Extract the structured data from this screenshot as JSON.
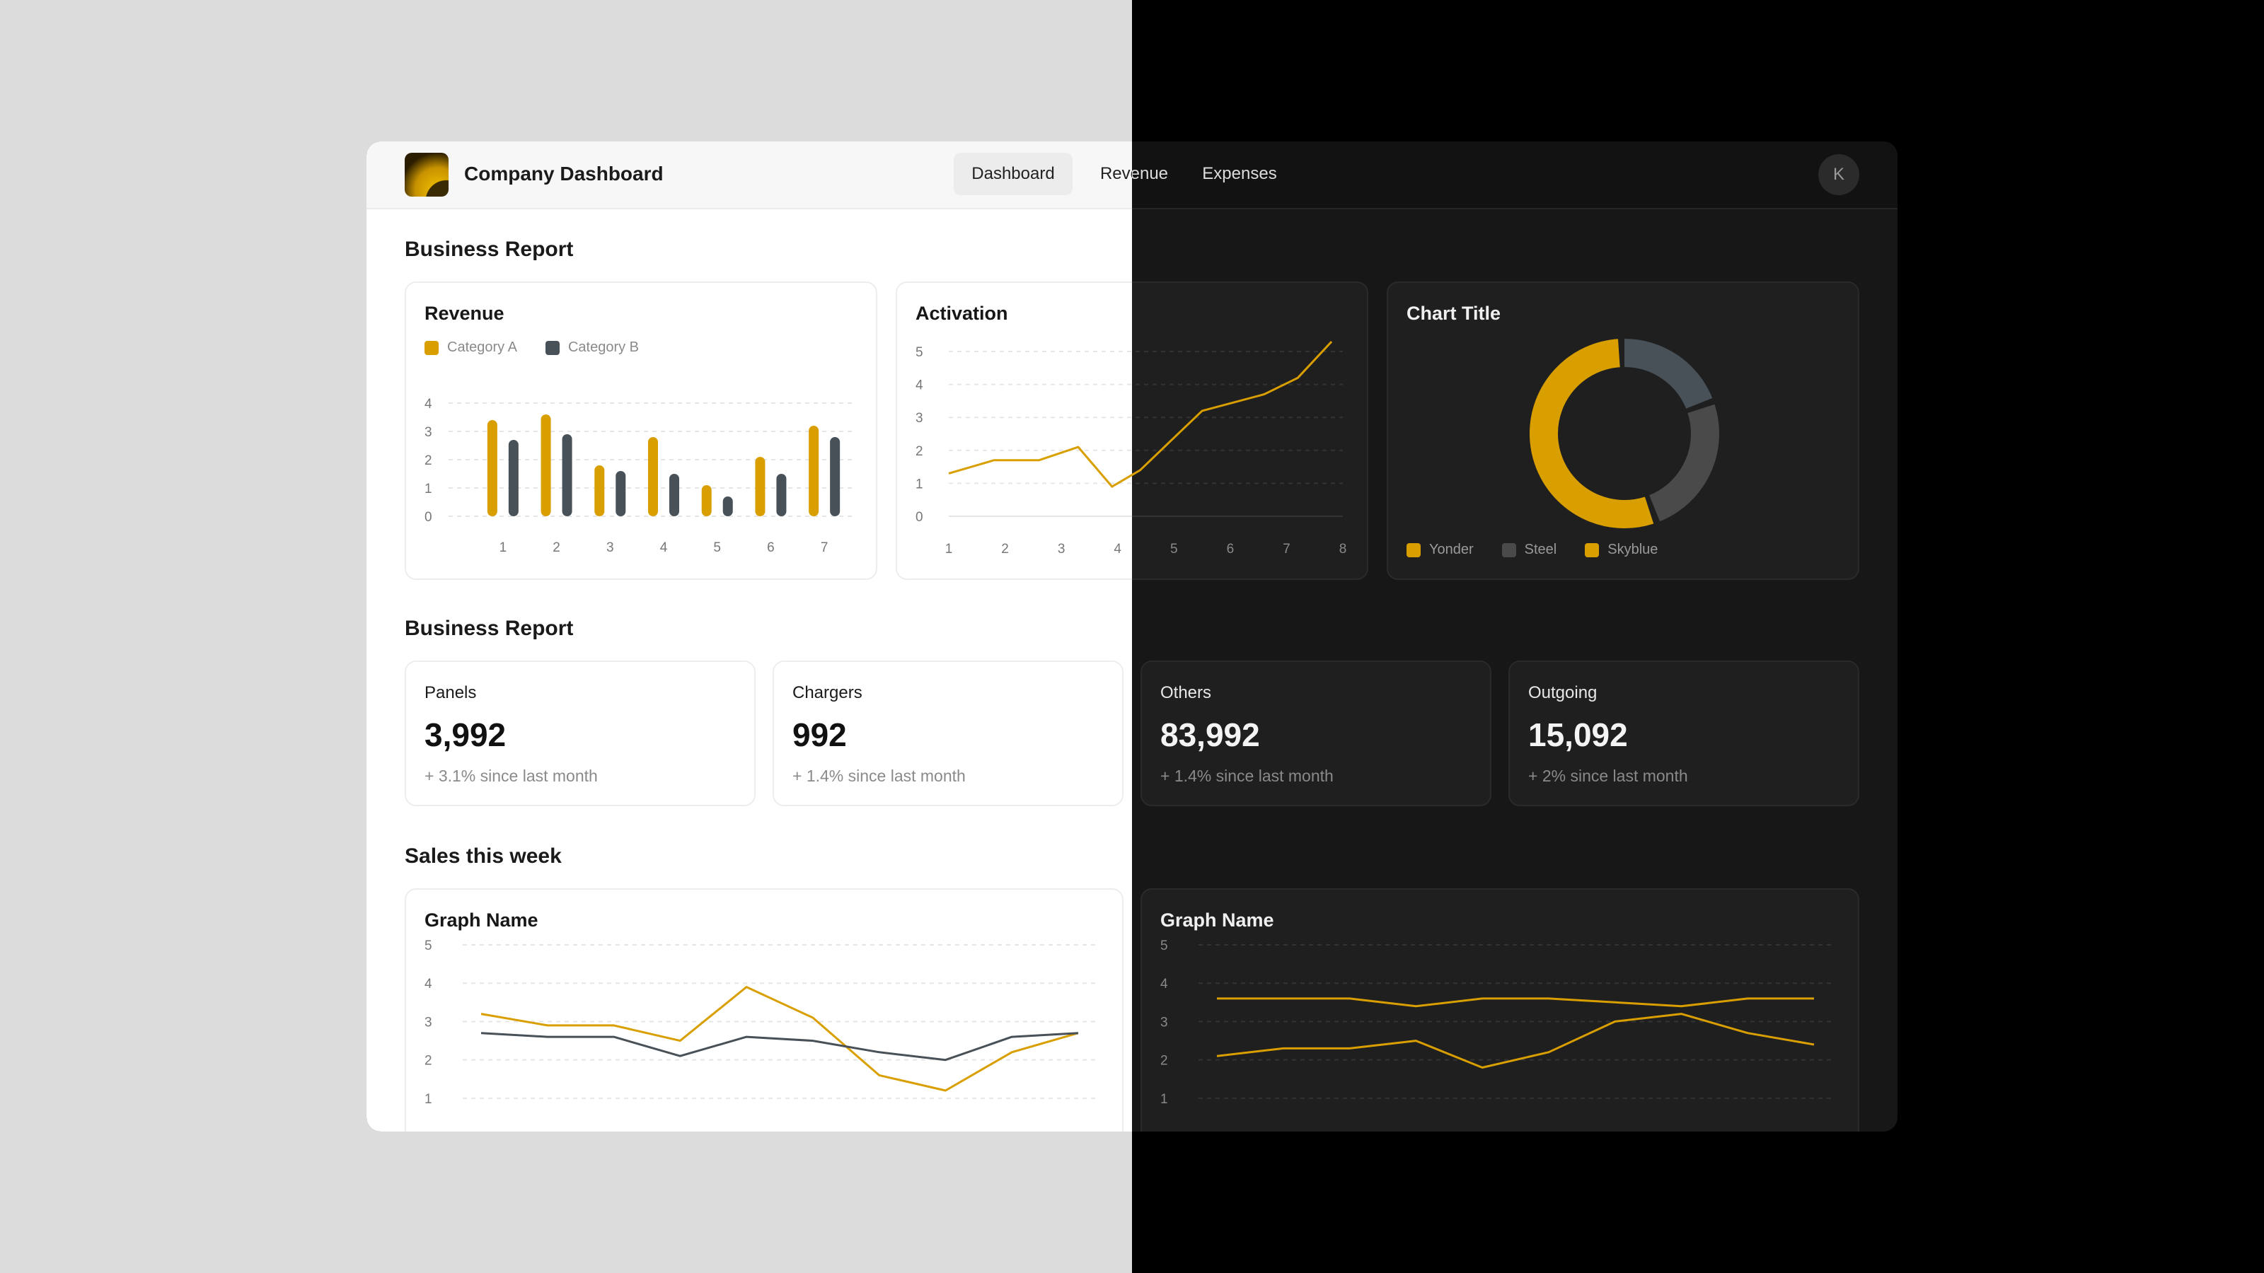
{
  "app": {
    "title": "Company Dashboard",
    "avatar_initial": "K"
  },
  "nav": {
    "tabs": [
      {
        "label": "Dashboard",
        "active": true
      },
      {
        "label": "Revenue"
      },
      {
        "label": "Expenses"
      }
    ]
  },
  "colors": {
    "accent": "#d99f00",
    "steel": "#485158",
    "gray": "#4a4a4a",
    "left_background": "#dcdcdc",
    "right_background": "#000000"
  },
  "sections": {
    "business_report_1": "Business Report",
    "business_report_2": "Business Report",
    "sales": "Sales this week"
  },
  "cards": {
    "revenue": {
      "title": "Revenue",
      "legend": [
        "Category A",
        "Category B"
      ]
    },
    "activation": {
      "title": "Activation"
    },
    "donut": {
      "title": "Chart Title",
      "legend": [
        "Yonder",
        "Steel",
        "Skyblue"
      ]
    },
    "graph_left": {
      "title": "Graph Name"
    },
    "graph_right": {
      "title": "Graph Name"
    }
  },
  "stats": [
    {
      "label": "Panels",
      "value": "3,992",
      "change": "+ 3.1% since last month"
    },
    {
      "label": "Chargers",
      "value": "992",
      "change": "+ 1.4% since last month"
    },
    {
      "label": "Others",
      "value": "83,992",
      "change": "+ 1.4% since last month"
    },
    {
      "label": "Outgoing",
      "value": "15,092",
      "change": "+ 2% since last month"
    }
  ],
  "chart_data": [
    {
      "type": "bar",
      "title": "Revenue",
      "categories": [
        "1",
        "2",
        "3",
        "4",
        "5",
        "6",
        "7"
      ],
      "series": [
        {
          "name": "Category A",
          "values": [
            3.4,
            3.6,
            1.8,
            2.8,
            1.1,
            2.1,
            3.2
          ],
          "color": "#d99f00"
        },
        {
          "name": "Category B",
          "values": [
            2.7,
            2.9,
            1.6,
            1.5,
            0.7,
            1.5,
            2.8
          ],
          "color": "#485158"
        }
      ],
      "yticks": [
        0,
        1,
        2,
        3,
        4
      ],
      "ylim": [
        0,
        4
      ],
      "grid": true,
      "legend": "top-left"
    },
    {
      "type": "line",
      "title": "Activation",
      "x": [
        1,
        1.8,
        2.6,
        3.3,
        3.9,
        4.4,
        5.5,
        6.6,
        7.2,
        7.8
      ],
      "series": [
        {
          "values": [
            1.3,
            1.7,
            1.7,
            2.1,
            0.9,
            1.4,
            3.2,
            3.7,
            4.2,
            5.3
          ],
          "color": "#d99f00"
        }
      ],
      "xticks": [
        1,
        2,
        3,
        4,
        5,
        6,
        7,
        8
      ],
      "yticks": [
        0,
        1,
        2,
        3,
        4,
        5
      ],
      "xlim": [
        1,
        8
      ],
      "ylim": [
        0,
        5
      ],
      "grid": true
    },
    {
      "type": "pie",
      "title": "Chart Title",
      "donut": true,
      "labels": [
        "Yonder",
        "Steel",
        "Skyblue"
      ],
      "values": [
        55,
        20,
        25
      ],
      "colors": [
        "#d99f00",
        "#485158",
        "#4a4a4a"
      ],
      "legend_colors": [
        "#d99f00",
        "#4a4a4a",
        "#d99f00"
      ],
      "legend": "bottom"
    },
    {
      "type": "line",
      "title": "Graph Name",
      "x": [
        1,
        2,
        3,
        4,
        5,
        6,
        7,
        8,
        9,
        10
      ],
      "series": [
        {
          "values": [
            3.2,
            2.9,
            2.9,
            2.5,
            3.9,
            3.1,
            1.6,
            1.2,
            2.2,
            2.7
          ],
          "color": "#d99f00"
        },
        {
          "values": [
            2.7,
            2.6,
            2.6,
            2.1,
            2.6,
            2.5,
            2.2,
            2.0,
            2.6,
            2.7
          ],
          "color": "#485158"
        }
      ],
      "yticks": [
        1,
        2,
        3,
        4,
        5
      ],
      "ylim": [
        0.5,
        5
      ],
      "grid": true
    },
    {
      "type": "line",
      "title": "Graph Name",
      "x": [
        1,
        2,
        3,
        4,
        5,
        6,
        7,
        8,
        9,
        10
      ],
      "series": [
        {
          "values": [
            3.6,
            3.6,
            3.6,
            3.4,
            3.6,
            3.6,
            3.5,
            3.4,
            3.6,
            3.6
          ],
          "color": "#d99f00"
        },
        {
          "values": [
            2.1,
            2.3,
            2.3,
            2.5,
            1.8,
            2.2,
            3.0,
            3.2,
            2.7,
            2.4
          ],
          "color": "#d99f00"
        }
      ],
      "yticks": [
        1,
        2,
        3,
        4,
        5
      ],
      "ylim": [
        0.5,
        5
      ],
      "grid": true
    }
  ]
}
